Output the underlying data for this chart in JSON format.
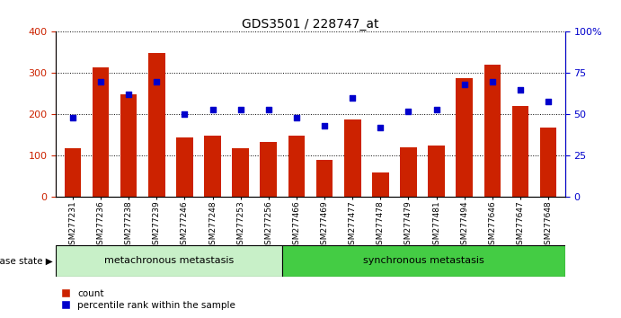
{
  "title": "GDS3501 / 228747_at",
  "samples": [
    "GSM277231",
    "GSM277236",
    "GSM277238",
    "GSM277239",
    "GSM277246",
    "GSM277248",
    "GSM277253",
    "GSM277256",
    "GSM277466",
    "GSM277469",
    "GSM277477",
    "GSM277478",
    "GSM277479",
    "GSM277481",
    "GSM277494",
    "GSM277646",
    "GSM277647",
    "GSM277648"
  ],
  "counts": [
    118,
    313,
    248,
    348,
    145,
    148,
    118,
    133,
    148,
    90,
    188,
    60,
    120,
    125,
    288,
    320,
    220,
    168
  ],
  "percentile_ranks": [
    48,
    70,
    62,
    70,
    50,
    53,
    53,
    53,
    48,
    43,
    60,
    42,
    52,
    53,
    68,
    70,
    65,
    58
  ],
  "group1_label": "metachronous metastasis",
  "group1_count": 8,
  "group2_label": "synchronous metastasis",
  "group2_count": 10,
  "disease_state_label": "disease state",
  "bar_color": "#cc2200",
  "dot_color": "#0000cc",
  "group1_bg": "#c8f0c8",
  "group2_bg": "#44cc44",
  "ylim_left": [
    0,
    400
  ],
  "ylim_right": [
    0,
    100
  ],
  "yticks_left": [
    0,
    100,
    200,
    300,
    400
  ],
  "yticks_right": [
    0,
    25,
    50,
    75,
    100
  ],
  "ytick_labels_right": [
    "0",
    "25",
    "50",
    "75",
    "100%"
  ]
}
